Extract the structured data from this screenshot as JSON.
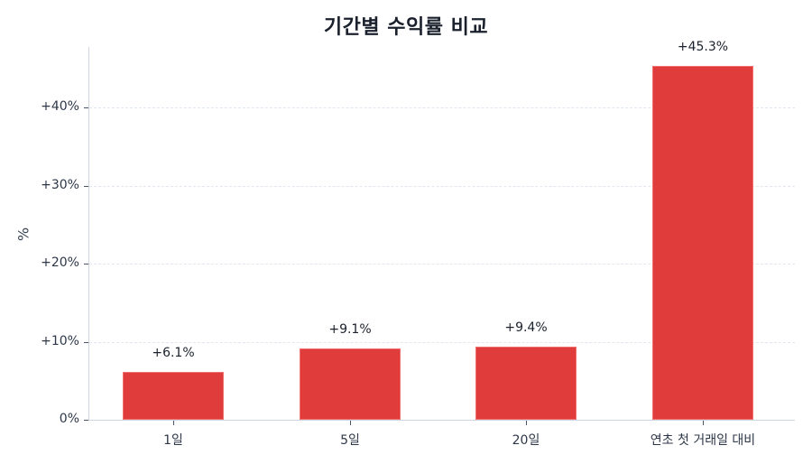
{
  "chart_data": {
    "type": "bar",
    "title": "기간별 수익률 비교",
    "xlabel": "",
    "ylabel": "%",
    "categories": [
      "1일",
      "5일",
      "20일",
      "연초 첫 거래일 대비"
    ],
    "values": [
      6.1,
      9.1,
      9.4,
      45.3
    ],
    "value_labels": [
      "+6.1%",
      "+9.1%",
      "+9.4%",
      "+45.3%"
    ],
    "ylim": [
      0,
      47.8
    ],
    "yticks": [
      0,
      10,
      20,
      30,
      40
    ],
    "ytick_labels": [
      "0%",
      "+10%",
      "+20%",
      "+30%",
      "+40%"
    ],
    "grid": "horizontal dashed",
    "legend": null,
    "bar_color": "#e03c3c"
  }
}
